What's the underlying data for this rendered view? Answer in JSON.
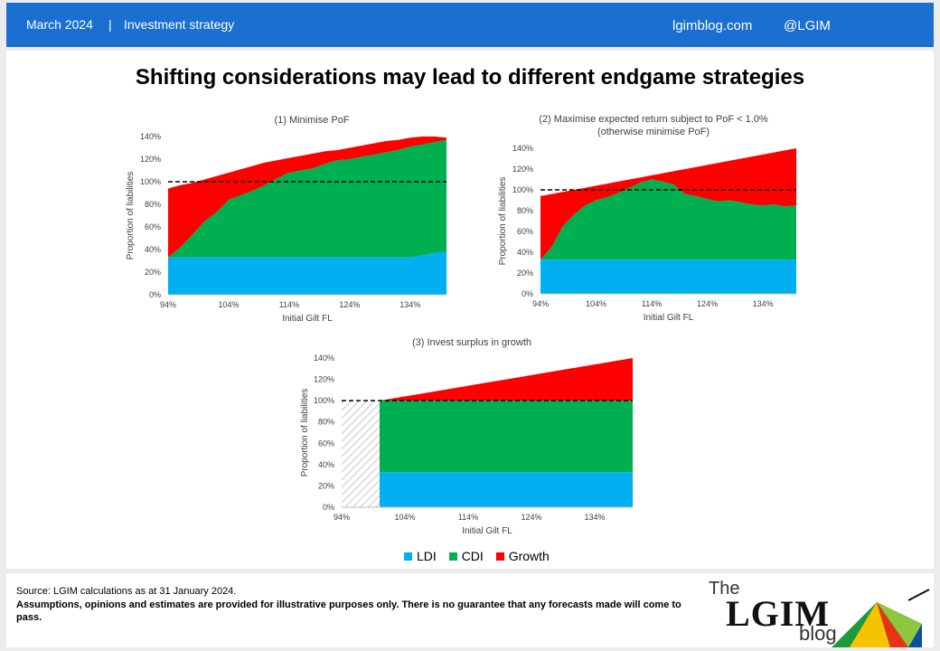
{
  "header": {
    "date": "March 2024",
    "separator": "|",
    "section": "Investment strategy",
    "site": "lgimblog.com",
    "handle": "@LGIM"
  },
  "main_title": "Shifting considerations may lead to different endgame strategies",
  "colors": {
    "ldi": "#00b0f0",
    "cdi": "#00b050",
    "growth": "#ff0000",
    "header": "#1a6fd1"
  },
  "chart_data": [
    {
      "type": "area",
      "title": "(1) Minimise PoF",
      "subtitle": "",
      "xlabel": "Initial Gilt FL",
      "ylabel": "Proportion of liabilities",
      "x": [
        94,
        96,
        98,
        100,
        102,
        104,
        106,
        108,
        110,
        112,
        114,
        116,
        118,
        120,
        122,
        124,
        126,
        128,
        130,
        132,
        134,
        136,
        138,
        140
      ],
      "xticks": [
        "94%",
        "104%",
        "114%",
        "124%",
        "134%"
      ],
      "yticks": [
        "0%",
        "20%",
        "40%",
        "60%",
        "80%",
        "100%",
        "120%",
        "140%"
      ],
      "ylim": [
        0,
        140
      ],
      "reference_line": 100,
      "hatched_region": null,
      "series": [
        {
          "name": "LDI",
          "values": [
            33,
            33,
            33,
            33,
            33,
            33,
            33,
            33,
            33,
            33,
            33,
            33,
            33,
            33,
            33,
            33,
            33,
            33,
            33,
            33,
            33,
            35,
            37,
            38
          ]
        },
        {
          "name": "CDI",
          "values": [
            0,
            9,
            20,
            32,
            40,
            51,
            55,
            59,
            64,
            70,
            75,
            77,
            79,
            83,
            86,
            87,
            89,
            91,
            93,
            95,
            98,
            98,
            98,
            99
          ]
        },
        {
          "name": "Growth",
          "values": [
            61,
            55,
            46,
            37,
            32,
            24,
            23,
            22,
            20,
            16,
            13,
            13,
            13,
            11,
            9,
            10,
            10,
            10,
            10,
            9,
            8,
            7,
            5,
            2
          ]
        }
      ]
    },
    {
      "type": "area",
      "title": "(2) Maximise expected return subject to PoF < 1.0%",
      "subtitle": "(otherwise minimise PoF)",
      "xlabel": "Initial Gilt FL",
      "ylabel": "Proportion of liabilities",
      "x": [
        94,
        96,
        98,
        100,
        102,
        104,
        106,
        108,
        110,
        112,
        114,
        116,
        118,
        120,
        122,
        124,
        126,
        128,
        130,
        132,
        134,
        136,
        138,
        140
      ],
      "xticks": [
        "94%",
        "104%",
        "114%",
        "124%",
        "134%"
      ],
      "yticks": [
        "0%",
        "20%",
        "40%",
        "60%",
        "80%",
        "100%",
        "120%",
        "140%"
      ],
      "ylim": [
        0,
        140
      ],
      "reference_line": 100,
      "hatched_region": null,
      "series": [
        {
          "name": "LDI",
          "values": [
            33,
            33,
            33,
            33,
            33,
            33,
            33,
            33,
            33,
            33,
            33,
            33,
            33,
            33,
            33,
            33,
            33,
            33,
            33,
            33,
            33,
            33,
            33,
            33
          ]
        },
        {
          "name": "CDI",
          "values": [
            0,
            12,
            32,
            43,
            52,
            57,
            60,
            64,
            69,
            74,
            77,
            75,
            72,
            63,
            61,
            58,
            56,
            57,
            55,
            53,
            52,
            53,
            51,
            52
          ]
        },
        {
          "name": "Growth",
          "values": [
            61,
            51,
            33,
            24,
            17,
            14,
            13,
            11,
            8,
            5,
            4,
            8,
            13,
            24,
            28,
            33,
            37,
            38,
            42,
            46,
            49,
            50,
            54,
            55
          ]
        }
      ]
    },
    {
      "type": "area",
      "title": "(3) Invest surplus in growth",
      "subtitle": "",
      "xlabel": "Initial Gilt FL",
      "ylabel": "Proportion of liabilities",
      "x": [
        100,
        102,
        104,
        106,
        108,
        110,
        112,
        114,
        116,
        118,
        120,
        122,
        124,
        126,
        128,
        130,
        132,
        134,
        136,
        138,
        140
      ],
      "xticks": [
        "94%",
        "104%",
        "114%",
        "124%",
        "134%"
      ],
      "yticks": [
        "0%",
        "20%",
        "40%",
        "60%",
        "80%",
        "100%",
        "120%",
        "140%"
      ],
      "ylim": [
        0,
        140
      ],
      "reference_line": 100,
      "hatched_region": [
        94,
        100
      ],
      "series": [
        {
          "name": "LDI",
          "values": [
            33,
            33,
            33,
            33,
            33,
            33,
            33,
            33,
            33,
            33,
            33,
            33,
            33,
            33,
            33,
            33,
            33,
            33,
            33,
            33,
            33
          ]
        },
        {
          "name": "CDI",
          "values": [
            67,
            67,
            67,
            67,
            67,
            67,
            67,
            67,
            67,
            67,
            67,
            67,
            67,
            67,
            67,
            67,
            67,
            67,
            67,
            67,
            67
          ]
        },
        {
          "name": "Growth",
          "values": [
            0,
            2,
            4,
            6,
            8,
            10,
            12,
            14,
            16,
            18,
            20,
            22,
            24,
            26,
            28,
            30,
            32,
            34,
            36,
            38,
            40
          ]
        }
      ]
    }
  ],
  "legend": [
    "LDI",
    "CDI",
    "Growth"
  ],
  "footer": {
    "source": "Source: LGIM calculations as at 31 January 2024.",
    "disclaimer": "Assumptions, opinions and estimates are provided for illustrative purposes only. There is no guarantee that any forecasts made will come to pass."
  },
  "logo": {
    "the": "The",
    "main": "LGIM",
    "blog": "blog"
  }
}
